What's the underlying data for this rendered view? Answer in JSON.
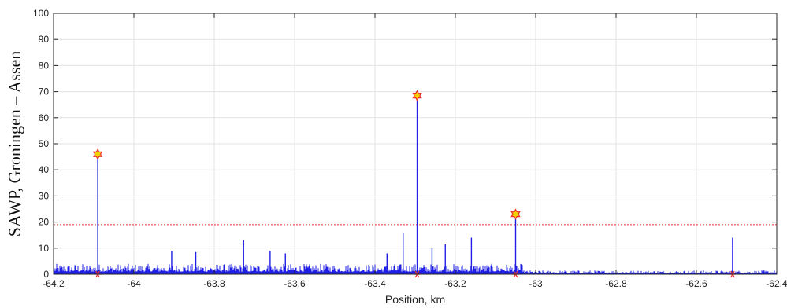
{
  "chart_data": {
    "type": "line",
    "title": "",
    "xlabel": "Position, km",
    "ylabel": "SAWP, Groningen – Assen",
    "xlim": [
      -64.2,
      -62.4
    ],
    "ylim": [
      0,
      100
    ],
    "xticks": [
      -64.2,
      -64,
      -63.8,
      -63.6,
      -63.4,
      -63.2,
      -63,
      -62.8,
      -62.6,
      -62.4
    ],
    "xtick_labels": [
      "-64.2",
      "-64",
      "-63.8",
      "-63.6",
      "-63.4",
      "-63.2",
      "-63",
      "-62.8",
      "-62.6",
      "-62.4"
    ],
    "yticks": [
      0,
      10,
      20,
      30,
      40,
      50,
      60,
      70,
      80,
      90,
      100
    ],
    "ytick_labels": [
      "0",
      "10",
      "20",
      "30",
      "40",
      "50",
      "60",
      "70",
      "80",
      "90",
      "100"
    ],
    "grid": true,
    "threshold": {
      "y": 19,
      "color": "#e8312f",
      "style": "dotted"
    },
    "series": [
      {
        "kind": "signal",
        "color": "#1f1fe6",
        "x": [
          -64.09,
          -63.906,
          -63.846,
          -63.727,
          -63.661,
          -63.623,
          -63.37,
          -63.33,
          -63.295,
          -63.258,
          -63.225,
          -63.16,
          -63.05,
          -62.51
        ],
        "values": [
          46,
          9,
          8.5,
          13,
          9,
          8,
          8,
          16,
          68.5,
          10,
          11.5,
          14,
          23,
          14
        ]
      },
      {
        "kind": "peak-markers",
        "color": "#e8312f",
        "fill": "#f5d000",
        "x": [
          -64.09,
          -63.295,
          -63.05
        ],
        "values": [
          46,
          68.5,
          23
        ]
      },
      {
        "kind": "baseline-markers",
        "color": "#e8312f",
        "x": [
          -64.09,
          -63.295,
          -63.05,
          -62.51
        ],
        "values": [
          0,
          0,
          0,
          0
        ]
      }
    ],
    "noise_level": {
      "left_segment_max": 4,
      "right_segment_max": 1.5,
      "split_x": -63.03
    }
  }
}
